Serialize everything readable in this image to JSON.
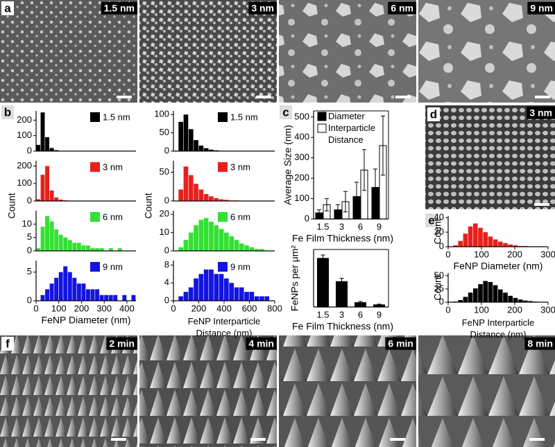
{
  "panel_labels": [
    "a",
    "b",
    "c",
    "d",
    "e",
    "f"
  ],
  "sem_a": [
    "1.5 nm",
    "3 nm",
    "6 nm",
    "9 nm"
  ],
  "sem_d": "3 nm",
  "sem_f": [
    "2 min",
    "4 min",
    "6 min",
    "8 min"
  ],
  "chart_data": [
    {
      "type": "histogram",
      "y_label": "Count",
      "x_label": "FeNP Diameter (nm)",
      "xlim": [
        0,
        440
      ],
      "xticks": [
        0,
        100,
        200,
        300,
        400
      ],
      "bins": [
        0,
        20,
        40,
        60,
        80,
        100,
        120,
        140,
        160,
        180,
        200,
        220,
        240,
        260,
        280,
        300,
        320,
        340,
        360,
        380,
        400,
        420,
        440
      ],
      "series": [
        {
          "name": "1.5 nm",
          "color": "#000000",
          "ylim": [
            0,
            260
          ],
          "yticks": [
            0,
            100,
            200
          ],
          "counts": [
            40,
            250,
            90,
            20,
            6,
            2,
            1,
            0,
            0,
            0,
            0,
            0,
            0,
            0,
            0,
            0,
            0,
            0,
            0,
            0,
            0,
            0
          ]
        },
        {
          "name": "3 nm",
          "color": "#e8201c",
          "ylim": [
            0,
            230
          ],
          "yticks": [
            0,
            100,
            200
          ],
          "counts": [
            10,
            150,
            200,
            60,
            20,
            8,
            4,
            2,
            1,
            1,
            0,
            0,
            0,
            0,
            0,
            0,
            0,
            0,
            0,
            0,
            0,
            0
          ]
        },
        {
          "name": "6 nm",
          "color": "#33e033",
          "ylim": [
            0,
            15
          ],
          "yticks": [
            0,
            5,
            10
          ],
          "counts": [
            1,
            9,
            13,
            11,
            8,
            6,
            5,
            4,
            3,
            3,
            2,
            2,
            1,
            1,
            1,
            0,
            1,
            0,
            1,
            0,
            0,
            0
          ]
        },
        {
          "name": "9 nm",
          "color": "#1414e0",
          "ylim": [
            0,
            7
          ],
          "yticks": [
            0,
            5
          ],
          "counts": [
            0,
            1,
            2,
            3,
            4,
            5,
            6,
            5,
            4,
            3,
            3,
            2,
            2,
            2,
            1,
            1,
            1,
            1,
            0,
            1,
            0,
            1
          ]
        }
      ]
    },
    {
      "type": "histogram",
      "y_label": "Count",
      "x_label": "FeNP Interparticle Distance (nm)",
      "xlim": [
        0,
        800
      ],
      "xticks": [
        0,
        200,
        400,
        600,
        800
      ],
      "bins": [
        0,
        40,
        80,
        120,
        160,
        200,
        240,
        280,
        320,
        360,
        400,
        440,
        480,
        520,
        560,
        600,
        640,
        680,
        720,
        760,
        800
      ],
      "series": [
        {
          "name": "1.5 nm",
          "color": "#000000",
          "ylim": [
            0,
            110
          ],
          "yticks": [
            0,
            50,
            100
          ],
          "counts": [
            0,
            80,
            100,
            60,
            30,
            15,
            8,
            4,
            2,
            1,
            0,
            0,
            0,
            0,
            0,
            0,
            0,
            0,
            0,
            0
          ]
        },
        {
          "name": "3 nm",
          "color": "#e8201c",
          "ylim": [
            0,
            70
          ],
          "yticks": [
            0,
            50
          ],
          "counts": [
            0,
            20,
            60,
            45,
            30,
            20,
            12,
            8,
            5,
            3,
            2,
            1,
            1,
            0,
            0,
            0,
            0,
            0,
            0,
            0
          ]
        },
        {
          "name": "6 nm",
          "color": "#33e033",
          "ylim": [
            0,
            22
          ],
          "yticks": [
            0,
            10,
            20
          ],
          "counts": [
            0,
            2,
            6,
            10,
            14,
            17,
            18,
            16,
            14,
            12,
            10,
            8,
            6,
            4,
            3,
            2,
            1,
            1,
            0,
            0
          ]
        },
        {
          "name": "9 nm",
          "color": "#1414e0",
          "ylim": [
            0,
            9
          ],
          "yticks": [
            0,
            4,
            8
          ],
          "counts": [
            0,
            1,
            2,
            3,
            5,
            6,
            7,
            7,
            6,
            6,
            5,
            4,
            3,
            3,
            2,
            2,
            1,
            1,
            1,
            0
          ]
        }
      ]
    },
    {
      "type": "bar",
      "y_label": "Average Size (nm)",
      "x_label": "Fe Film Thickness (nm)",
      "categories": [
        "1.5",
        "3",
        "6",
        "9"
      ],
      "ylim": [
        0,
        530
      ],
      "yticks": [
        0,
        100,
        200,
        300,
        400,
        500
      ],
      "series": [
        {
          "name": "Diameter",
          "color": "#000000",
          "values": [
            30,
            45,
            110,
            155
          ],
          "errors": [
            15,
            25,
            70,
            90
          ]
        },
        {
          "name": "Interparticle Distance",
          "color": "#ffffff",
          "values": [
            70,
            85,
            240,
            360
          ],
          "errors": [
            30,
            50,
            100,
            145
          ]
        }
      ]
    },
    {
      "type": "bar",
      "y_label": "FeNPs per μm²",
      "x_label": "Fe Film Thickness (nm)",
      "categories": [
        "1.5",
        "3",
        "6",
        "9"
      ],
      "ylim": [
        0,
        260
      ],
      "series": [
        {
          "color": "#000000",
          "values": [
            220,
            115,
            20,
            10
          ],
          "errors": [
            15,
            15,
            5,
            3
          ]
        }
      ]
    },
    {
      "type": "histogram",
      "y_label": "Count",
      "x_label": "FeNP Diameter (nm)",
      "xlim": [
        0,
        300
      ],
      "xticks": [
        0,
        100,
        200,
        300
      ],
      "bins": [
        0,
        15,
        30,
        45,
        60,
        75,
        90,
        105,
        120,
        135,
        150,
        165,
        180,
        195,
        210,
        225,
        240,
        255,
        270,
        285,
        300
      ],
      "series": [
        {
          "color": "#e8201c",
          "ylim": [
            0,
            42
          ],
          "yticks": [
            0,
            20,
            40
          ],
          "counts": [
            0,
            2,
            8,
            18,
            28,
            32,
            26,
            20,
            14,
            10,
            7,
            5,
            3,
            2,
            1,
            1,
            0,
            0,
            0,
            0
          ]
        }
      ]
    },
    {
      "type": "histogram",
      "y_label": "Count",
      "x_label": "FeNP Interparticle Distance (nm)",
      "xlim": [
        0,
        300
      ],
      "xticks": [
        0,
        100,
        200,
        300
      ],
      "bins": [
        0,
        15,
        30,
        45,
        60,
        75,
        90,
        105,
        120,
        135,
        150,
        165,
        180,
        195,
        210,
        225,
        240,
        255,
        270,
        285,
        300
      ],
      "series": [
        {
          "color": "#000000",
          "ylim": [
            0,
            55
          ],
          "yticks": [
            0,
            25,
            50
          ],
          "counts": [
            0,
            1,
            4,
            10,
            18,
            26,
            34,
            40,
            38,
            32,
            24,
            18,
            12,
            8,
            5,
            3,
            2,
            1,
            0,
            0
          ]
        }
      ]
    }
  ]
}
